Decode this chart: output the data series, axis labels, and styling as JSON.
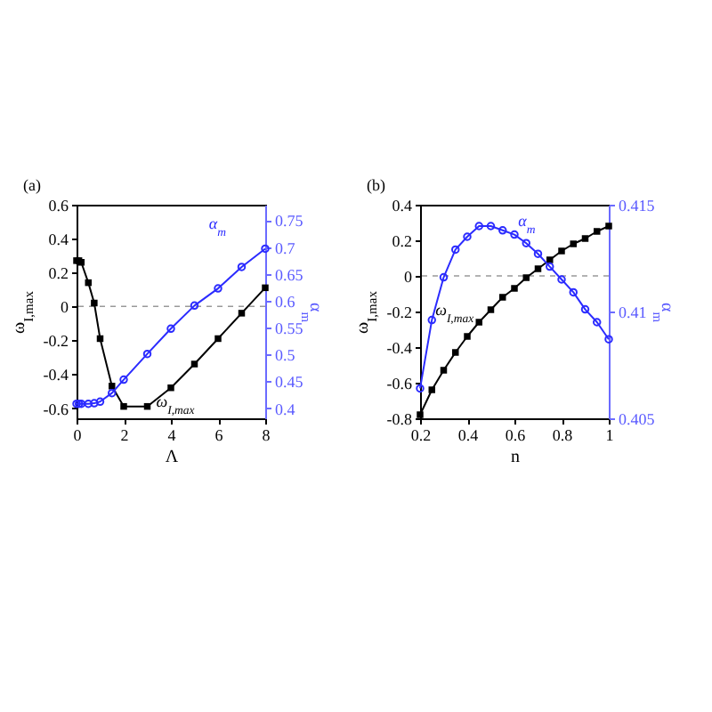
{
  "chart_data": [
    {
      "type": "line",
      "title": "(a)",
      "xlabel": "Λ",
      "ylabel": "ω$_{I,max}$",
      "y2label": "α$_{m}$",
      "xlim": [
        0,
        8
      ],
      "xticks": [
        0,
        2,
        4,
        6,
        8
      ],
      "ylim": [
        -0.66,
        0.6
      ],
      "yticks": [
        -0.6,
        -0.4,
        -0.2,
        0,
        0.2,
        0.4,
        0.6
      ],
      "y2lim": [
        0.381,
        0.779
      ],
      "y2ticks": [
        0.4,
        0.45,
        0.5,
        0.55,
        0.6,
        0.65,
        0.7,
        0.75
      ],
      "series": [
        {
          "color": "#000000",
          "marker": "square",
          "x": [
            0,
            0.1,
            0.2,
            0.5,
            0.75,
            1,
            1.5,
            2,
            3,
            4,
            5,
            6,
            7,
            8
          ],
          "values": [
            0.27,
            0.27,
            0.26,
            0.14,
            0.02,
            -0.19,
            -0.47,
            -0.59,
            -0.59,
            -0.48,
            -0.34,
            -0.19,
            -0.04,
            0.11
          ]
        },
        {
          "name": "α$_{m}$",
          "color": "#2b2bff",
          "marker": "circle",
          "axis": "y2",
          "x": [
            0,
            0.1,
            0.2,
            0.5,
            0.75,
            1,
            1.5,
            2,
            3,
            4,
            5,
            6,
            7,
            8
          ],
          "values": [
            0.408,
            0.408,
            0.408,
            0.408,
            0.409,
            0.412,
            0.428,
            0.453,
            0.501,
            0.548,
            0.591,
            0.623,
            0.663,
            0.697
          ]
        }
      ],
      "ref_lines": [
        {
          "axis": "y",
          "value": 0,
          "color": "#999999",
          "line_style": "dashed"
        }
      ],
      "annotations": [
        {
          "text": "ω$_{I,max}$",
          "x": 3,
          "y": -0.59
        }
      ]
    },
    {
      "type": "line",
      "title": "(b)",
      "xlabel": "n",
      "ylabel": "ω$_{I,max}$",
      "y2label": "α$_{m}$",
      "xlim": [
        0.2,
        1
      ],
      "xticks": [
        0.2,
        0.4,
        0.6,
        0.8,
        1
      ],
      "ylim": [
        -0.8,
        0.4
      ],
      "yticks": [
        -0.8,
        -0.6,
        -0.4,
        -0.2,
        0,
        0.2,
        0.4
      ],
      "y2lim": [
        0.405,
        0.415
      ],
      "y2ticks": [
        0.405,
        0.41,
        0.415
      ],
      "series": [
        {
          "color": "#000000",
          "marker": "square",
          "x": [
            0.2,
            0.25,
            0.3,
            0.35,
            0.4,
            0.45,
            0.5,
            0.55,
            0.6,
            0.65,
            0.7,
            0.75,
            0.8,
            0.85,
            0.9,
            0.95,
            1
          ],
          "values": [
            -0.78,
            -0.64,
            -0.53,
            -0.43,
            -0.34,
            -0.26,
            -0.19,
            -0.12,
            -0.07,
            -0.01,
            0.04,
            0.09,
            0.14,
            0.18,
            0.21,
            0.25,
            0.28
          ]
        },
        {
          "name": "α$_{m}$",
          "color": "#2b2bff",
          "marker": "circle",
          "axis": "y2",
          "x": [
            0.2,
            0.25,
            0.3,
            0.35,
            0.4,
            0.45,
            0.5,
            0.55,
            0.6,
            0.65,
            0.7,
            0.75,
            0.8,
            0.85,
            0.9,
            0.95,
            1
          ],
          "values": [
            0.4064,
            0.4096,
            0.4116,
            0.4129,
            0.4135,
            0.414,
            0.414,
            0.4138,
            0.4136,
            0.4132,
            0.4127,
            0.4121,
            0.4115,
            0.4109,
            0.4101,
            0.4095,
            0.4087
          ]
        }
      ],
      "ref_lines": [
        {
          "axis": "y",
          "value": 0,
          "color": "#999999",
          "line_style": "dashed"
        }
      ],
      "annotations": [
        {
          "text": "ω$_{I,max}$",
          "x": 0.45,
          "y": -0.26
        }
      ]
    }
  ]
}
